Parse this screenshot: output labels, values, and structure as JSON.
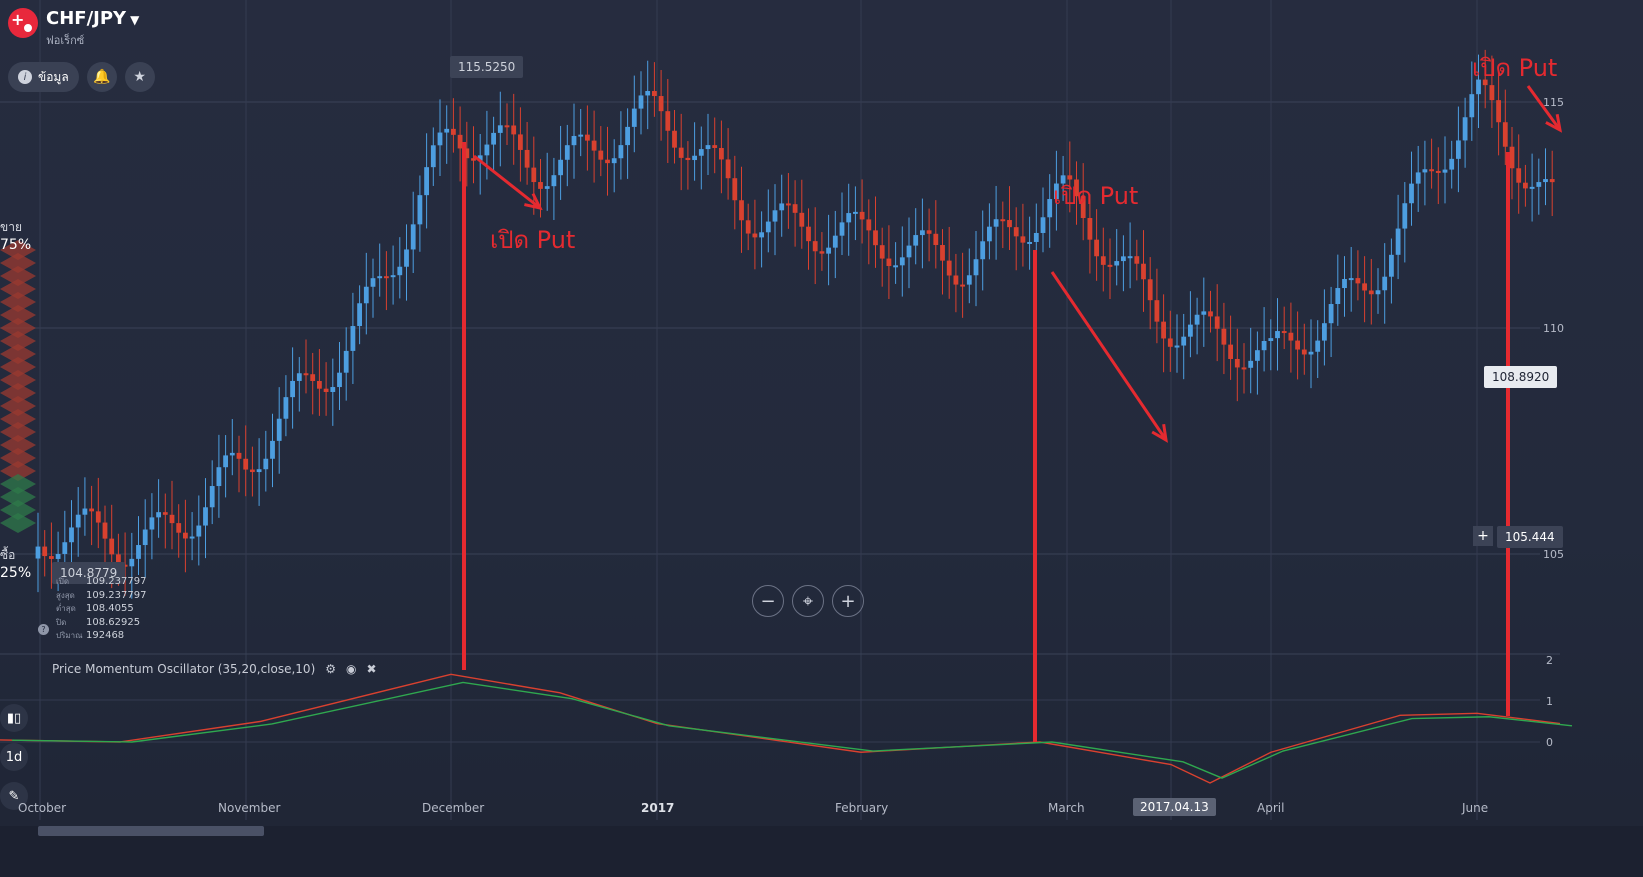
{
  "header": {
    "pair": "CHF/JPY",
    "subtitle": "ฟอเร็กซ์",
    "info_button": "ข้อมูล"
  },
  "sentiment": {
    "sell_label": "ขาย",
    "sell_pct": "75%",
    "buy_label": "ซื้อ",
    "buy_pct": "25%"
  },
  "ohlc": {
    "rows": [
      {
        "k": "เปิด",
        "v": "109.237797"
      },
      {
        "k": "สูงสุด",
        "v": "109.237797"
      },
      {
        "k": "ต่ำสุด",
        "v": "108.4055"
      },
      {
        "k": "ปิด",
        "v": "108.62925"
      },
      {
        "k": "ปริมาณ",
        "v": "192468"
      }
    ]
  },
  "price_tags": {
    "high_tag": "115.5250",
    "low_tag": "104.8779",
    "current": "108.8920",
    "crosshair": "105.444"
  },
  "y_axis": {
    "labels": [
      "115",
      "110",
      "105"
    ]
  },
  "oscillator": {
    "title": "Price Momentum Oscillator (35,20,close,10)",
    "y_labels": [
      "2",
      "1",
      "0"
    ],
    "colors": {
      "line1": "#d9412f",
      "line2": "#2fa84f"
    }
  },
  "x_axis": {
    "labels": [
      "October",
      "November",
      "December",
      "2017",
      "February",
      "March",
      "April",
      "June"
    ],
    "crosshair_date": "2017.04.13"
  },
  "toolbar": {
    "timeframe": "1d"
  },
  "annotations": {
    "put1": "เปิด Put",
    "put2": "เปิด Put",
    "put3": "เปิด Put"
  },
  "colors": {
    "bull": "#4d9ee0",
    "bear": "#d9412f",
    "annotation": "#e52a30"
  },
  "chart_data": {
    "type": "line",
    "title": "",
    "x": [
      "October",
      "November",
      "December",
      "2017",
      "February",
      "March",
      "April",
      "June"
    ],
    "series": [
      {
        "values": [
          104.9,
          106.5,
          113.8,
          114.3,
          111.5,
          112.4,
          108.8,
          114.6
        ]
      }
    ],
    "ylim": [
      104,
      116
    ]
  }
}
